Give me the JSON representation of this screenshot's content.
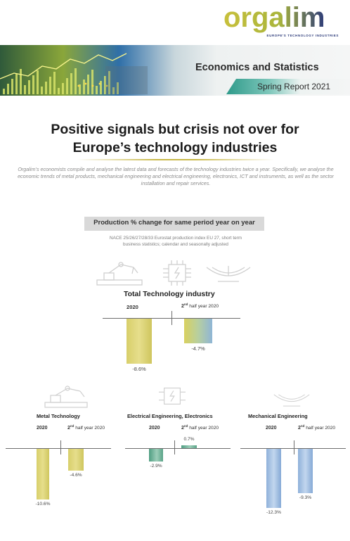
{
  "brand": {
    "logo": "orgalim",
    "tagline": "EUROPE'S TECHNOLOGY INDUSTRIES",
    "colors": {
      "olive": "#b9b63a",
      "navy": "#2d3b7a",
      "teal": "#2e9a8a"
    }
  },
  "banner": {
    "title": "Economics and Statistics",
    "subtitle": "Spring Report 2021"
  },
  "headline": {
    "line1": "Positive signals but crisis not over for",
    "line2": "Europe’s technology industries"
  },
  "intro": "Orgalim’s economists compile and analyse the latest data and forecasts of the technology industries twice a year. Specifically, we analyse the economic trends of metal products, mechanical engineering and electrical engineering, electronics, ICT and instruments, as well as the sector installation and repair services.",
  "production": {
    "title": "Production % change for same period year on year",
    "source_line1": "NACE 25/26/27/28/33 Eurostat production index EU 27, short term",
    "source_line2": "business statistics; calendar and seasonally adjusted"
  },
  "column_labels": {
    "year": "2020",
    "half_prefix": "2",
    "half_sup": "nd",
    "half_suffix": " half year 2020"
  },
  "icons": [
    "robot-arm-icon",
    "microchip-icon",
    "machinery-icon"
  ],
  "chart_data": [
    {
      "type": "bar",
      "title": "Total Technology industry",
      "categories": [
        "2020",
        "2nd half year 2020"
      ],
      "values": [
        -8.6,
        -4.7
      ],
      "labels": [
        "-8.6%",
        "-4.7%"
      ],
      "colors": [
        "olive-gradient",
        "olive-blue-gradient"
      ]
    },
    {
      "type": "bar",
      "title": "Metal Technology",
      "categories": [
        "2020",
        "2nd half year 2020"
      ],
      "values": [
        -10.6,
        -4.6
      ],
      "labels": [
        "-10.6%",
        "-4.6%"
      ],
      "colors": [
        "olive-gradient",
        "olive-gradient"
      ]
    },
    {
      "type": "bar",
      "title": "Electrical Engineering, Electronics",
      "categories": [
        "2020",
        "2nd half year 2020"
      ],
      "values": [
        -2.9,
        0.7
      ],
      "labels": [
        "-2.9%",
        "0.7%"
      ],
      "colors": [
        "teal-gradient",
        "teal-gradient"
      ]
    },
    {
      "type": "bar",
      "title": "Mechanical Engineering",
      "categories": [
        "2020",
        "2nd half year 2020"
      ],
      "values": [
        -12.3,
        -9.3
      ],
      "labels": [
        "-12.3%",
        "-9.3%"
      ],
      "colors": [
        "blue-gradient",
        "blue-gradient"
      ]
    }
  ]
}
